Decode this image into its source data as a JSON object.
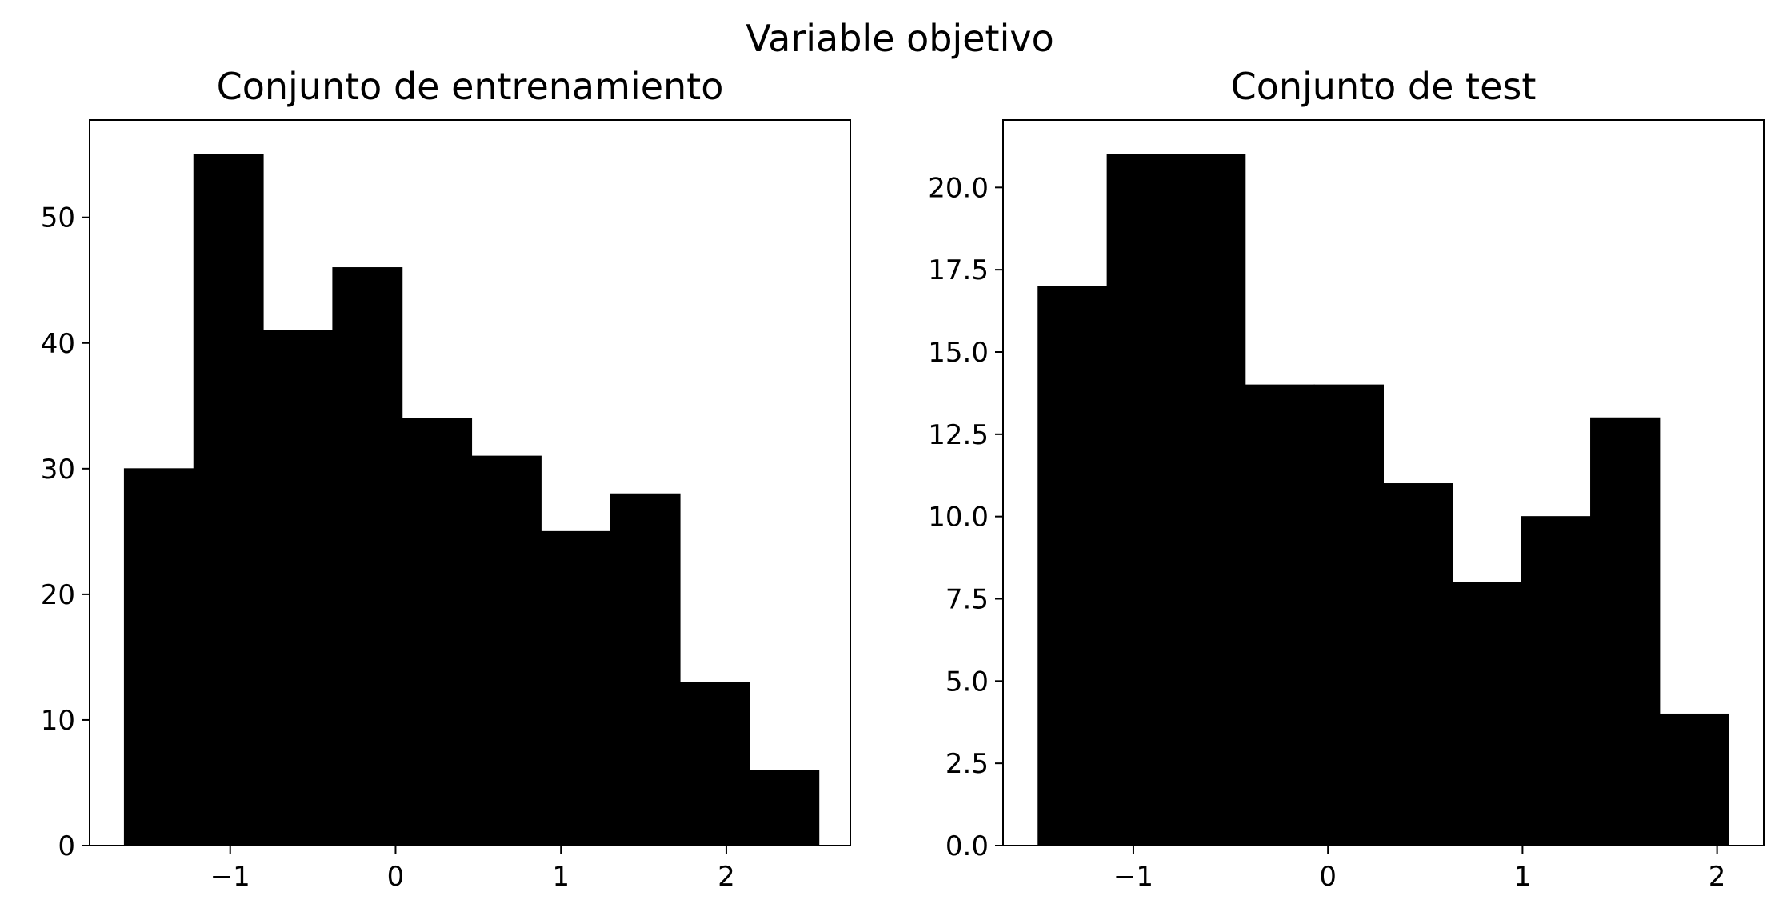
{
  "figure": {
    "suptitle": "Variable objetivo"
  },
  "chart_data": [
    {
      "type": "bar",
      "title": "Conjunto de entrenamiento",
      "xlabel": "",
      "ylabel": "",
      "bin_edges": [
        -1.64,
        -1.22,
        -0.8,
        -0.38,
        0.04,
        0.46,
        0.88,
        1.3,
        1.72,
        2.14,
        2.56
      ],
      "values": [
        30,
        55,
        41,
        46,
        34,
        31,
        25,
        28,
        13,
        6
      ],
      "xlim": [
        -1.85,
        2.75
      ],
      "ylim": [
        0,
        57.75
      ],
      "xticks": [
        -1,
        0,
        1,
        2
      ],
      "xtick_labels": [
        "−1",
        "0",
        "1",
        "2"
      ],
      "yticks": [
        0,
        10,
        20,
        30,
        40,
        50
      ],
      "ytick_labels": [
        "0",
        "10",
        "20",
        "30",
        "40",
        "50"
      ],
      "color": "#000000",
      "grid": false
    },
    {
      "type": "bar",
      "title": "Conjunto de test",
      "xlabel": "",
      "ylabel": "",
      "bin_edges": [
        -1.49,
        -1.135,
        -0.78,
        -0.425,
        -0.07,
        0.285,
        0.64,
        0.995,
        1.35,
        1.705,
        2.06
      ],
      "values": [
        17,
        21,
        21,
        14,
        14,
        11,
        8,
        10,
        13,
        4
      ],
      "xlim": [
        -1.67,
        2.24
      ],
      "ylim": [
        0,
        22.05
      ],
      "xticks": [
        -1,
        0,
        1,
        2
      ],
      "xtick_labels": [
        "−1",
        "0",
        "1",
        "2"
      ],
      "yticks": [
        0,
        2.5,
        5,
        7.5,
        10,
        12.5,
        15,
        17.5,
        20
      ],
      "ytick_labels": [
        "0.0",
        "2.5",
        "5.0",
        "7.5",
        "10.0",
        "12.5",
        "15.0",
        "17.5",
        "20.0"
      ],
      "color": "#000000",
      "grid": false
    }
  ]
}
